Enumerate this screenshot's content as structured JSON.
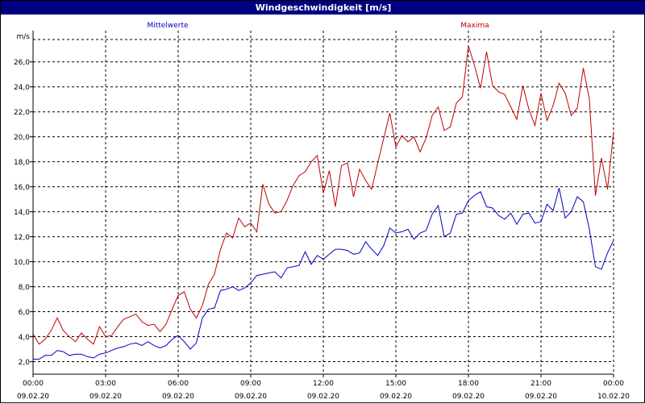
{
  "window": {
    "title": "Windgeschwindigkeit [m/s]"
  },
  "chart_data": {
    "type": "line",
    "title": "Windgeschwindigkeit [m/s]",
    "unit_label": "m/s",
    "xlim_hours": [
      0,
      24
    ],
    "ylim": [
      1,
      28.5
    ],
    "y_ticks": [
      2,
      4,
      6,
      8,
      10,
      12,
      14,
      16,
      18,
      20,
      22,
      24,
      26
    ],
    "y_tick_labels": [
      "2,0",
      "4,0",
      "6,0",
      "8,0",
      "10,0",
      "12,0",
      "14,0",
      "16,0",
      "18,0",
      "20,0",
      "22,0",
      "24,0",
      "26,0"
    ],
    "x_ticks": [
      {
        "time": "00:00",
        "date": "09.02.20"
      },
      {
        "time": "03:00",
        "date": "09.02.20"
      },
      {
        "time": "06:00",
        "date": "09.02.20"
      },
      {
        "time": "09:00",
        "date": "09.02.20"
      },
      {
        "time": "12:00",
        "date": "09.02.20"
      },
      {
        "time": "15:00",
        "date": "09.02.20"
      },
      {
        "time": "18:00",
        "date": "09.02.20"
      },
      {
        "time": "21:00",
        "date": "09.02.20"
      },
      {
        "time": "00:00",
        "date": "10.02.20"
      }
    ],
    "grid": true,
    "series": [
      {
        "name": "Mittelwerte",
        "color": "#0000c0",
        "legend_position": "top-left",
        "x": [
          0,
          0.25,
          0.5,
          0.75,
          1,
          1.25,
          1.5,
          1.75,
          2,
          2.25,
          2.5,
          2.75,
          3,
          3.25,
          3.5,
          3.75,
          4,
          4.25,
          4.5,
          4.75,
          5,
          5.25,
          5.5,
          5.75,
          6,
          6.25,
          6.5,
          6.75,
          7,
          7.25,
          7.5,
          7.75,
          8,
          8.25,
          8.5,
          8.75,
          9,
          9.25,
          9.5,
          9.75,
          10,
          10.25,
          10.5,
          10.75,
          11,
          11.25,
          11.5,
          11.75,
          12,
          12.25,
          12.5,
          12.75,
          13,
          13.25,
          13.5,
          13.75,
          14,
          14.25,
          14.5,
          14.75,
          15,
          15.25,
          15.5,
          15.75,
          16,
          16.25,
          16.5,
          16.75,
          17,
          17.25,
          17.5,
          17.75,
          18,
          18.25,
          18.5,
          18.75,
          19,
          19.25,
          19.5,
          19.75,
          20,
          20.25,
          20.5,
          20.75,
          21,
          21.25,
          21.5,
          21.75,
          22,
          22.25,
          22.5,
          22.75,
          23,
          23.25,
          23.5,
          23.75,
          24
        ],
        "values": [
          2.2,
          2.2,
          2.5,
          2.5,
          2.9,
          2.8,
          2.5,
          2.6,
          2.6,
          2.4,
          2.3,
          2.6,
          2.7,
          2.9,
          3.1,
          3.2,
          3.4,
          3.5,
          3.3,
          3.6,
          3.3,
          3.1,
          3.3,
          3.8,
          4.1,
          3.6,
          3.0,
          3.5,
          5.5,
          6.2,
          6.3,
          7.7,
          7.8,
          8.0,
          7.7,
          7.9,
          8.3,
          8.9,
          9.0,
          9.1,
          9.2,
          8.7,
          9.5,
          9.6,
          9.7,
          10.8,
          9.8,
          10.5,
          10.2,
          10.6,
          11.0,
          11.0,
          10.9,
          10.6,
          10.7,
          11.6,
          11.0,
          10.5,
          11.3,
          12.7,
          12.3,
          12.4,
          12.6,
          11.8,
          12.3,
          12.5,
          13.8,
          14.5,
          12.0,
          12.3,
          13.8,
          13.9,
          14.9,
          15.3,
          15.6,
          14.4,
          14.3,
          13.7,
          13.4,
          13.9,
          13.0,
          13.8,
          13.9,
          13.1,
          13.2,
          14.6,
          14.1,
          15.9,
          13.5,
          14.0,
          15.2,
          14.8,
          12.6,
          9.6,
          9.4,
          10.7,
          11.7
        ]
      },
      {
        "name": "Maxima",
        "color": "#c00000",
        "legend_position": "top-right",
        "x": [
          0,
          0.25,
          0.5,
          0.75,
          1,
          1.25,
          1.5,
          1.75,
          2,
          2.25,
          2.5,
          2.75,
          3,
          3.25,
          3.5,
          3.75,
          4,
          4.25,
          4.5,
          4.75,
          5,
          5.25,
          5.5,
          5.75,
          6,
          6.25,
          6.5,
          6.75,
          7,
          7.25,
          7.5,
          7.75,
          8,
          8.25,
          8.5,
          8.75,
          9,
          9.25,
          9.5,
          9.75,
          10,
          10.25,
          10.5,
          10.75,
          11,
          11.25,
          11.5,
          11.75,
          12,
          12.25,
          12.5,
          12.75,
          13,
          13.25,
          13.5,
          13.75,
          14,
          14.25,
          14.5,
          14.75,
          15,
          15.25,
          15.5,
          15.75,
          16,
          16.25,
          16.5,
          16.75,
          17,
          17.25,
          17.5,
          17.75,
          18,
          18.25,
          18.5,
          18.75,
          19,
          19.25,
          19.5,
          19.75,
          20,
          20.25,
          20.5,
          20.75,
          21,
          21.25,
          21.5,
          21.75,
          22,
          22.25,
          22.5,
          22.75,
          23,
          23.25,
          23.5,
          23.75,
          24
        ],
        "values": [
          4.2,
          3.4,
          3.8,
          4.5,
          5.5,
          4.5,
          4.0,
          3.6,
          4.3,
          3.8,
          3.4,
          4.8,
          4.0,
          4.1,
          4.8,
          5.4,
          5.6,
          5.8,
          5.2,
          4.9,
          5.0,
          4.4,
          5.0,
          6.2,
          7.3,
          7.6,
          6.2,
          5.5,
          6.5,
          8.2,
          9.0,
          11.0,
          12.3,
          11.9,
          13.5,
          12.8,
          13.1,
          12.4,
          16.2,
          14.6,
          13.9,
          14.0,
          14.9,
          16.1,
          16.9,
          17.2,
          18.0,
          18.5,
          15.5,
          17.3,
          14.4,
          17.7,
          17.9,
          15.2,
          17.4,
          16.5,
          15.8,
          17.9,
          19.9,
          21.9,
          19.2,
          20.1,
          19.6,
          20.0,
          18.8,
          19.9,
          21.7,
          22.4,
          20.5,
          20.8,
          22.7,
          23.2,
          27.3,
          25.7,
          23.9,
          26.8,
          24.1,
          23.6,
          23.4,
          22.4,
          21.4,
          24.1,
          22.2,
          20.9,
          23.5,
          21.3,
          22.5,
          24.3,
          23.5,
          21.7,
          22.3,
          25.5,
          23.0,
          15.3,
          18.3,
          15.8,
          20.4
        ]
      }
    ]
  }
}
